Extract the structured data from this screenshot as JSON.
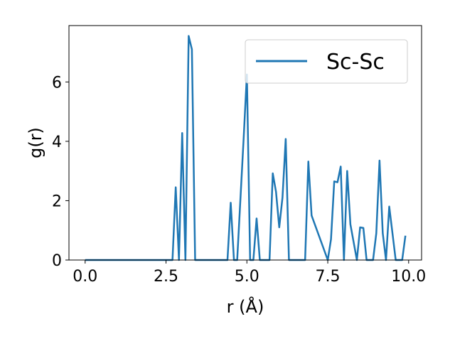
{
  "chart_data": {
    "type": "line",
    "xlabel": "r (Å)",
    "ylabel": "g(r)",
    "xlim": [
      -0.5,
      10.4
    ],
    "ylim": [
      0,
      7.9
    ],
    "xticks": [
      0.0,
      2.5,
      5.0,
      7.5,
      10.0
    ],
    "xtick_labels": [
      "0.0",
      "2.5",
      "5.0",
      "7.5",
      "10.0"
    ],
    "yticks": [
      0,
      2,
      4,
      6
    ],
    "ytick_labels": [
      "0",
      "2",
      "4",
      "6"
    ],
    "grid": false,
    "legend_position": "top-right",
    "series": [
      {
        "name": "Sc-Sc",
        "color": "#1f77b4",
        "x": [
          0.0,
          2.7,
          2.8,
          2.9,
          3.0,
          3.1,
          3.2,
          3.3,
          3.4,
          3.5,
          4.4,
          4.5,
          4.6,
          4.7,
          4.9,
          5.0,
          5.1,
          5.2,
          5.3,
          5.4,
          5.7,
          5.8,
          5.9,
          6.0,
          6.1,
          6.2,
          6.3,
          6.8,
          6.9,
          7.0,
          7.5,
          7.6,
          7.7,
          7.8,
          7.9,
          8.0,
          8.1,
          8.2,
          8.3,
          8.4,
          8.5,
          8.6,
          8.7,
          8.9,
          9.0,
          9.1,
          9.2,
          9.3,
          9.4,
          9.5,
          9.6,
          9.8,
          9.9
        ],
        "y": [
          0,
          0,
          2.45,
          0,
          4.28,
          0,
          7.55,
          7.1,
          0,
          0,
          0,
          1.93,
          0,
          0,
          4.1,
          6.25,
          0,
          0,
          1.4,
          0,
          0,
          2.92,
          2.3,
          1.1,
          2.1,
          4.08,
          0,
          0,
          3.32,
          1.5,
          0,
          0.7,
          2.65,
          2.62,
          3.15,
          0,
          3.0,
          1.2,
          0.6,
          0,
          1.1,
          1.08,
          0,
          0,
          0.9,
          3.35,
          0.9,
          0,
          1.8,
          0.9,
          0,
          0,
          0.82
        ]
      }
    ]
  }
}
